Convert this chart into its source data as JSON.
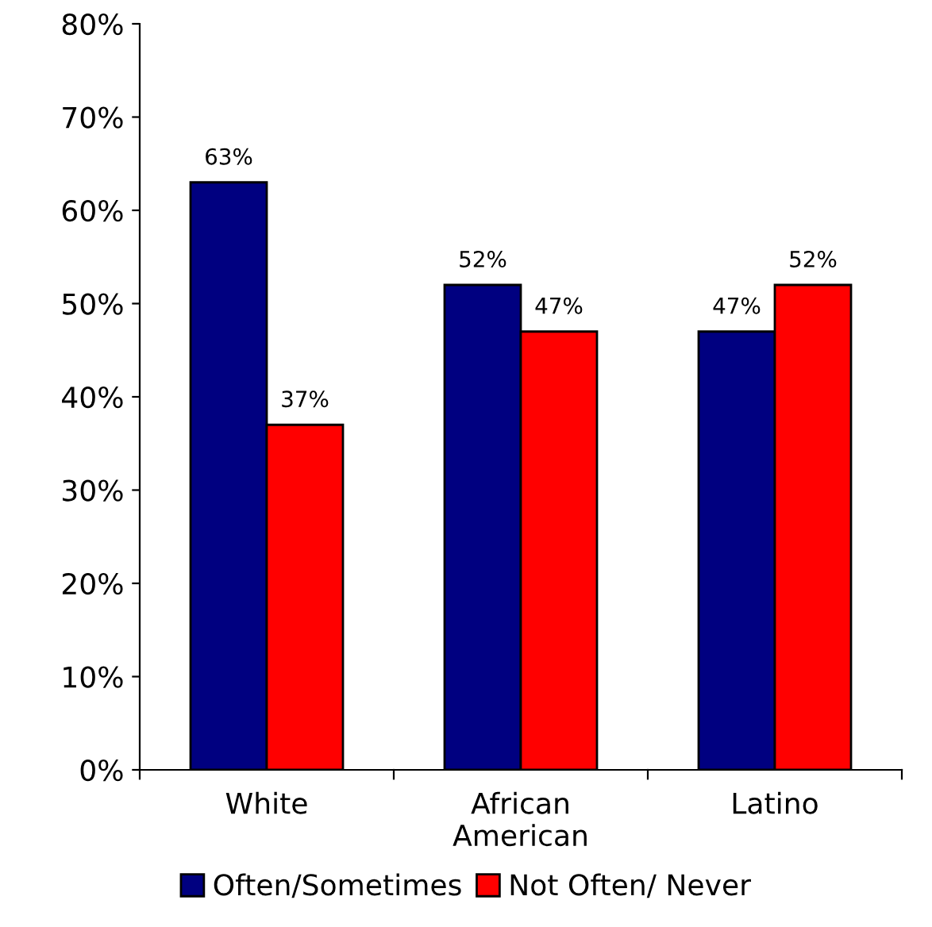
{
  "chart_data": {
    "type": "bar",
    "categories": [
      "White",
      "African\nAmerican",
      "Latino"
    ],
    "series": [
      {
        "name": "Often/Sometimes",
        "color": "#000080",
        "values": [
          63,
          52,
          47
        ],
        "value_labels": [
          "63%",
          "52%",
          "47%"
        ]
      },
      {
        "name": "Not Often/ Never",
        "color": "#ff0000",
        "values": [
          37,
          47,
          52
        ],
        "value_labels": [
          "37%",
          "47%",
          "52%"
        ]
      }
    ],
    "ylim": [
      0,
      80
    ],
    "yticks": [
      {
        "value": 0,
        "label": "0%"
      },
      {
        "value": 10,
        "label": "10%"
      },
      {
        "value": 20,
        "label": "20%"
      },
      {
        "value": 30,
        "label": "30%"
      },
      {
        "value": 40,
        "label": "40%"
      },
      {
        "value": 50,
        "label": "50%"
      },
      {
        "value": 60,
        "label": "60%"
      },
      {
        "value": 70,
        "label": "70%"
      },
      {
        "value": 80,
        "label": "80%"
      }
    ],
    "grid": false,
    "legend": "bottom"
  }
}
